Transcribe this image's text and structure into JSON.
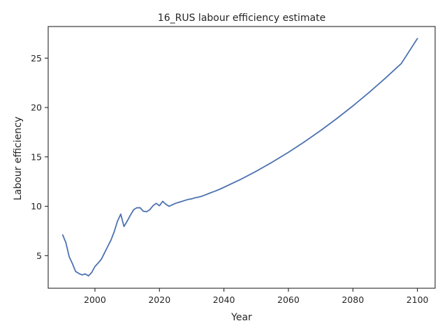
{
  "chart_data": {
    "type": "line",
    "title": "16_RUS labour efficiency estimate",
    "xlabel": "Year",
    "ylabel": "Labour efficiency",
    "xlim": [
      1985.5,
      2105.5
    ],
    "ylim": [
      1.7,
      28.2
    ],
    "xticks": [
      2000,
      2020,
      2040,
      2060,
      2080,
      2100
    ],
    "yticks": [
      5,
      10,
      15,
      20,
      25
    ],
    "grid": false,
    "legend": "none",
    "series_color": "#4c72b0",
    "series": [
      {
        "x": [
          1990,
          1991,
          1992,
          1993,
          1994,
          1995,
          1996,
          1997,
          1998,
          1999,
          2000,
          2001,
          2002,
          2003,
          2004,
          2005,
          2006,
          2007,
          2008,
          2009,
          2010,
          2011,
          2012,
          2013,
          2014,
          2015,
          2016,
          2017,
          2018,
          2019,
          2020,
          2021,
          2022,
          2023,
          2024,
          2025,
          2026,
          2027,
          2028,
          2029,
          2030,
          2031,
          2032,
          2033,
          2034,
          2035,
          2036,
          2037,
          2038,
          2039,
          2040,
          2045,
          2050,
          2055,
          2060,
          2065,
          2070,
          2075,
          2080,
          2085,
          2090,
          2095,
          2100
        ],
        "values": [
          7.1,
          6.3,
          4.9,
          4.2,
          3.4,
          3.2,
          3.05,
          3.15,
          2.95,
          3.3,
          3.9,
          4.25,
          4.65,
          5.3,
          5.95,
          6.6,
          7.45,
          8.5,
          9.2,
          7.95,
          8.5,
          9.1,
          9.65,
          9.85,
          9.85,
          9.5,
          9.45,
          9.65,
          10.05,
          10.3,
          10.05,
          10.5,
          10.2,
          10.0,
          10.15,
          10.3,
          10.4,
          10.5,
          10.6,
          10.7,
          10.75,
          10.85,
          10.92,
          11.0,
          11.12,
          11.25,
          11.38,
          11.5,
          11.63,
          11.77,
          11.92,
          12.69,
          13.54,
          14.47,
          15.46,
          16.53,
          17.67,
          18.88,
          20.16,
          21.52,
          22.95,
          24.45,
          26.98
        ]
      }
    ]
  }
}
